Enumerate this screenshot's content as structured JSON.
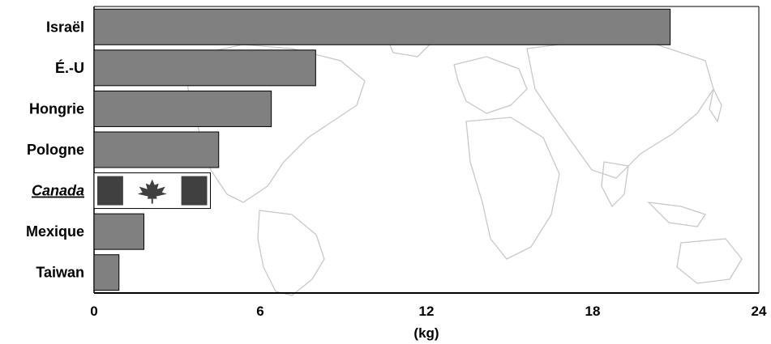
{
  "chart_data": {
    "type": "bar",
    "orientation": "horizontal",
    "categories": [
      "Israël",
      "É.-U",
      "Hongrie",
      "Pologne",
      "Canada",
      "Mexique",
      "Taiwan"
    ],
    "values": [
      20.8,
      8.0,
      6.4,
      4.5,
      4.2,
      1.8,
      0.9
    ],
    "highlight": "Canada",
    "highlight_style": "canadian-flag",
    "bar_color": "#808080",
    "flag_colors": {
      "red": "#404040",
      "white": "#ffffff"
    },
    "xlabel": "(kg)",
    "xlim": [
      0,
      24
    ],
    "xticks": [
      0,
      6,
      12,
      18,
      24
    ],
    "background": "world-map",
    "grid": false
  }
}
